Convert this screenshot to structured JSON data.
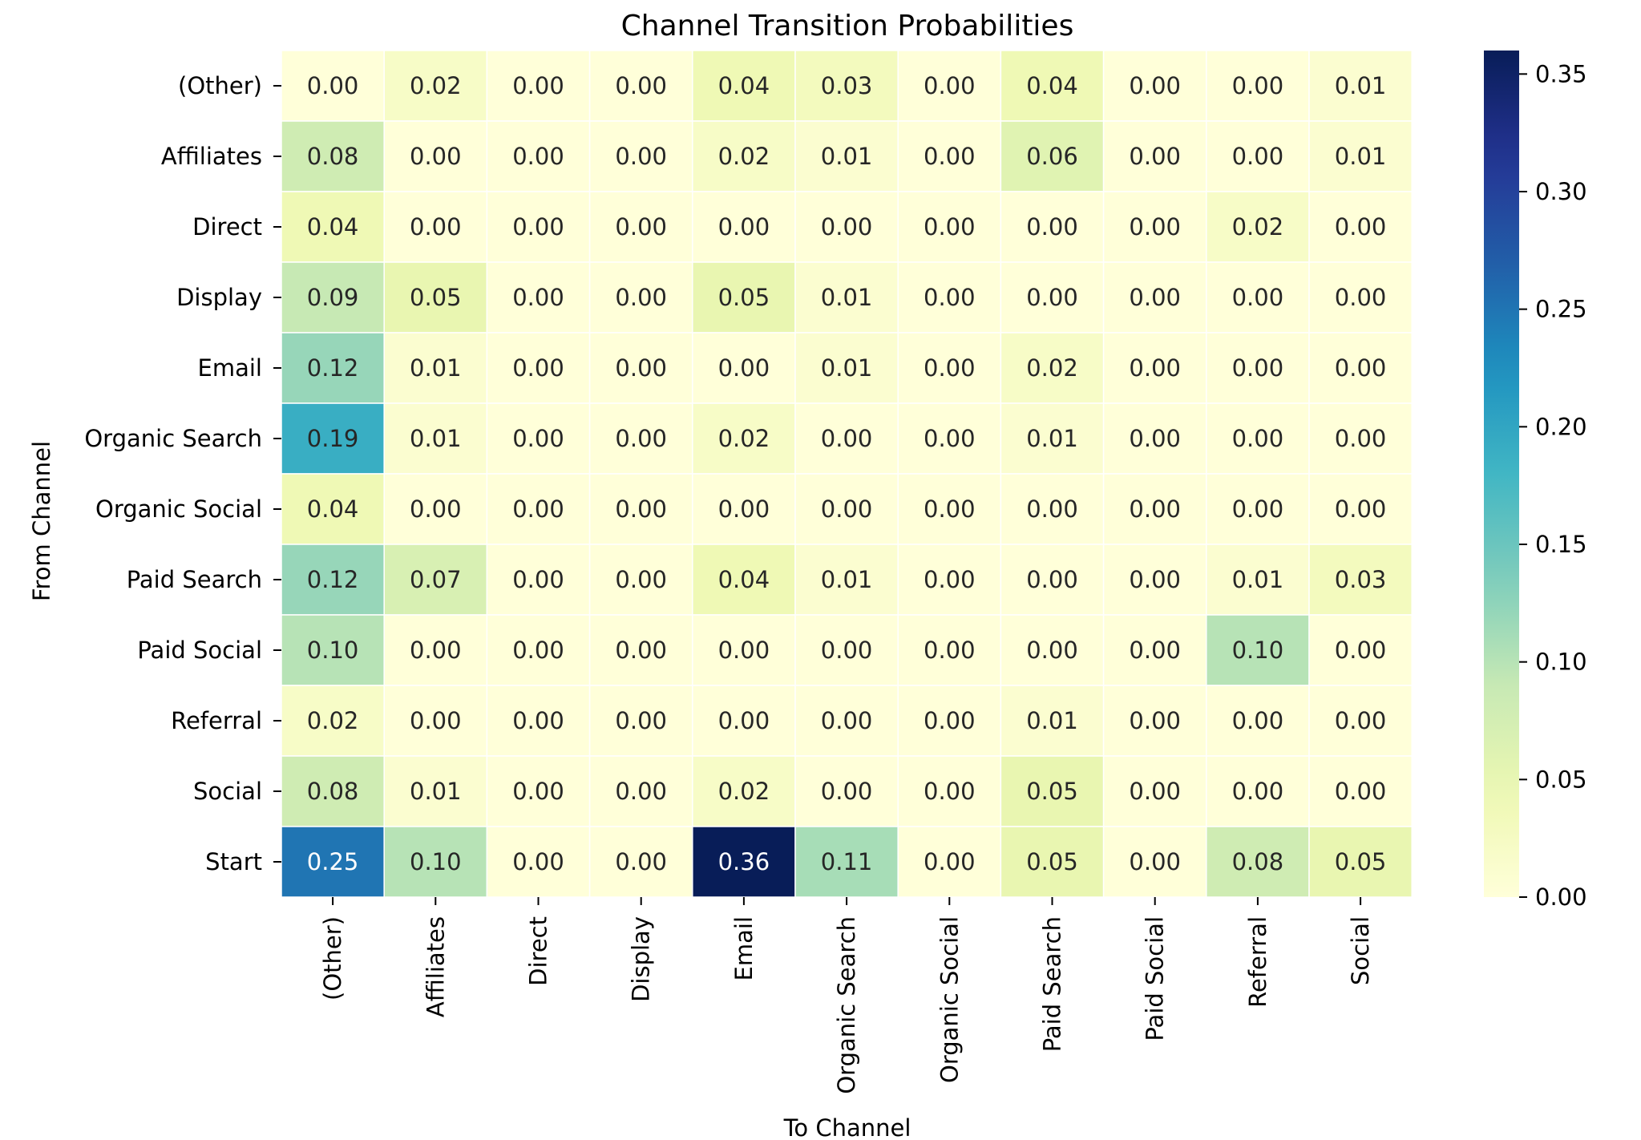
{
  "chart_data": {
    "type": "heatmap",
    "title": "Channel Transition Probabilities",
    "xlabel": "To Channel",
    "ylabel": "From Channel",
    "x_categories": [
      "(Other)",
      "Affiliates",
      "Direct",
      "Display",
      "Email",
      "Organic Search",
      "Organic Social",
      "Paid Search",
      "Paid Social",
      "Referral",
      "Social"
    ],
    "y_categories": [
      "(Other)",
      "Affiliates",
      "Direct",
      "Display",
      "Email",
      "Organic Search",
      "Organic Social",
      "Paid Search",
      "Paid Social",
      "Referral",
      "Social",
      "Start"
    ],
    "values": [
      [
        0.0,
        0.02,
        0.0,
        0.0,
        0.04,
        0.03,
        0.0,
        0.04,
        0.0,
        0.0,
        0.01
      ],
      [
        0.08,
        0.0,
        0.0,
        0.0,
        0.02,
        0.01,
        0.0,
        0.06,
        0.0,
        0.0,
        0.01
      ],
      [
        0.04,
        0.0,
        0.0,
        0.0,
        0.0,
        0.0,
        0.0,
        0.0,
        0.0,
        0.02,
        0.0
      ],
      [
        0.09,
        0.05,
        0.0,
        0.0,
        0.05,
        0.01,
        0.0,
        0.0,
        0.0,
        0.0,
        0.0
      ],
      [
        0.12,
        0.01,
        0.0,
        0.0,
        0.0,
        0.01,
        0.0,
        0.02,
        0.0,
        0.0,
        0.0
      ],
      [
        0.19,
        0.01,
        0.0,
        0.0,
        0.02,
        0.0,
        0.0,
        0.01,
        0.0,
        0.0,
        0.0
      ],
      [
        0.04,
        0.0,
        0.0,
        0.0,
        0.0,
        0.0,
        0.0,
        0.0,
        0.0,
        0.0,
        0.0
      ],
      [
        0.12,
        0.07,
        0.0,
        0.0,
        0.04,
        0.01,
        0.0,
        0.0,
        0.0,
        0.01,
        0.03
      ],
      [
        0.1,
        0.0,
        0.0,
        0.0,
        0.0,
        0.0,
        0.0,
        0.0,
        0.0,
        0.1,
        0.0
      ],
      [
        0.02,
        0.0,
        0.0,
        0.0,
        0.0,
        0.0,
        0.0,
        0.01,
        0.0,
        0.0,
        0.0
      ],
      [
        0.08,
        0.01,
        0.0,
        0.0,
        0.02,
        0.0,
        0.0,
        0.05,
        0.0,
        0.0,
        0.0
      ],
      [
        0.25,
        0.1,
        0.0,
        0.0,
        0.36,
        0.11,
        0.0,
        0.05,
        0.0,
        0.08,
        0.05
      ]
    ],
    "value_format": "0.00",
    "colormap": "YlGnBu",
    "colorbar": {
      "range": [
        0.0,
        0.36
      ],
      "ticks": [
        0.0,
        0.05,
        0.1,
        0.15,
        0.2,
        0.25,
        0.3,
        0.35
      ],
      "tick_labels": [
        "0.00",
        "0.05",
        "0.10",
        "0.15",
        "0.20",
        "0.25",
        "0.30",
        "0.35"
      ]
    },
    "colors": {
      "cell_border": "#ffffff",
      "text_dark": "#262626",
      "text_light": "#ffffff"
    },
    "grid": false,
    "legend": "colorbar-right"
  }
}
